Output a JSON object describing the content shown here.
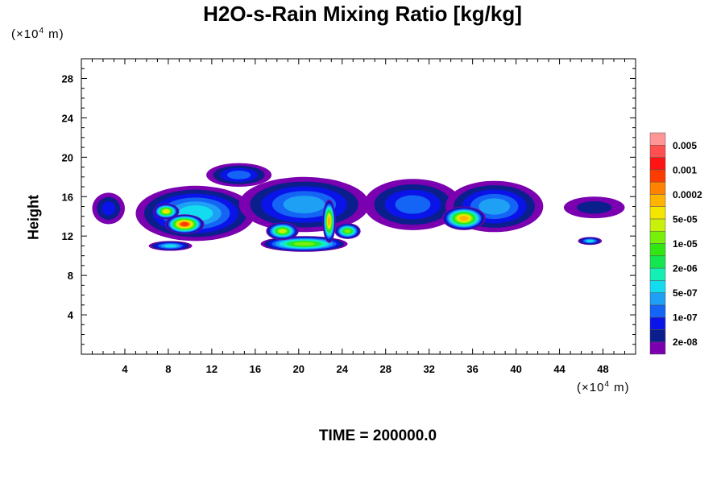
{
  "chart_data": {
    "type": "heatmap",
    "title": "H2O-s-Rain Mixing Ratio [kg/kg]",
    "ylabel": "Height",
    "x_unit": {
      "prefix": "(×10",
      "exp": "4",
      "suffix": " m)"
    },
    "y_unit": {
      "prefix": "(×10",
      "exp": "4",
      "suffix": " m)"
    },
    "xlim": [
      0,
      51
    ],
    "ylim": [
      0,
      30
    ],
    "x_ticks": [
      4,
      8,
      12,
      16,
      20,
      24,
      28,
      32,
      36,
      40,
      44,
      48
    ],
    "y_ticks": [
      4,
      8,
      12,
      16,
      20,
      24,
      28
    ],
    "grid": false,
    "legend_placement": "right",
    "colorbar": {
      "colors": [
        "#7a00b0",
        "#0a1e8c",
        "#0a14e8",
        "#1464f5",
        "#1ea0f5",
        "#14dcf0",
        "#14f0b4",
        "#14e650",
        "#32e614",
        "#78f00a",
        "#c8f00a",
        "#f5e600",
        "#ffb400",
        "#ff8200",
        "#ff3c00",
        "#ff1414",
        "#ff5050",
        "#ff9696"
      ],
      "labels": [
        "2e-08",
        "1e-07",
        "5e-07",
        "2e-06",
        "1e-05",
        "5e-05",
        "0.0002",
        "0.001",
        "0.005"
      ]
    },
    "regions": [
      {
        "cx": 2.5,
        "cy": 14.8,
        "rx": 1.5,
        "ry": 1.6,
        "level": 2
      },
      {
        "cx": 10.5,
        "cy": 14.3,
        "rx": 5.5,
        "ry": 2.8,
        "level": 5
      },
      {
        "cx": 20.5,
        "cy": 15.2,
        "rx": 6.0,
        "ry": 2.8,
        "level": 4
      },
      {
        "cx": 14.5,
        "cy": 18.2,
        "rx": 3.0,
        "ry": 1.2,
        "level": 3
      },
      {
        "cx": 30.5,
        "cy": 15.2,
        "rx": 4.5,
        "ry": 2.6,
        "level": 3
      },
      {
        "cx": 38.0,
        "cy": 15.0,
        "rx": 4.5,
        "ry": 2.6,
        "level": 4
      },
      {
        "cx": 47.2,
        "cy": 14.9,
        "rx": 2.8,
        "ry": 1.1,
        "level": 1
      },
      {
        "cx": 8.2,
        "cy": 11.0,
        "rx": 2.0,
        "ry": 0.5,
        "level": 5
      },
      {
        "cx": 20.5,
        "cy": 11.2,
        "rx": 4.0,
        "ry": 0.8,
        "level": 9
      },
      {
        "cx": 46.8,
        "cy": 11.5,
        "rx": 1.1,
        "ry": 0.4,
        "level": 5
      },
      {
        "cx": 9.5,
        "cy": 13.2,
        "rx": 1.8,
        "ry": 1.0,
        "level": 14
      },
      {
        "cx": 7.8,
        "cy": 14.5,
        "rx": 1.2,
        "ry": 0.8,
        "level": 11
      },
      {
        "cx": 22.8,
        "cy": 13.5,
        "rx": 0.6,
        "ry": 2.2,
        "level": 12
      },
      {
        "cx": 18.5,
        "cy": 12.5,
        "rx": 1.5,
        "ry": 0.9,
        "level": 10
      },
      {
        "cx": 35.2,
        "cy": 13.8,
        "rx": 2.0,
        "ry": 1.2,
        "level": 12
      },
      {
        "cx": 24.5,
        "cy": 12.5,
        "rx": 1.2,
        "ry": 0.8,
        "level": 9
      }
    ]
  },
  "time_label": "TIME = 200000.0"
}
